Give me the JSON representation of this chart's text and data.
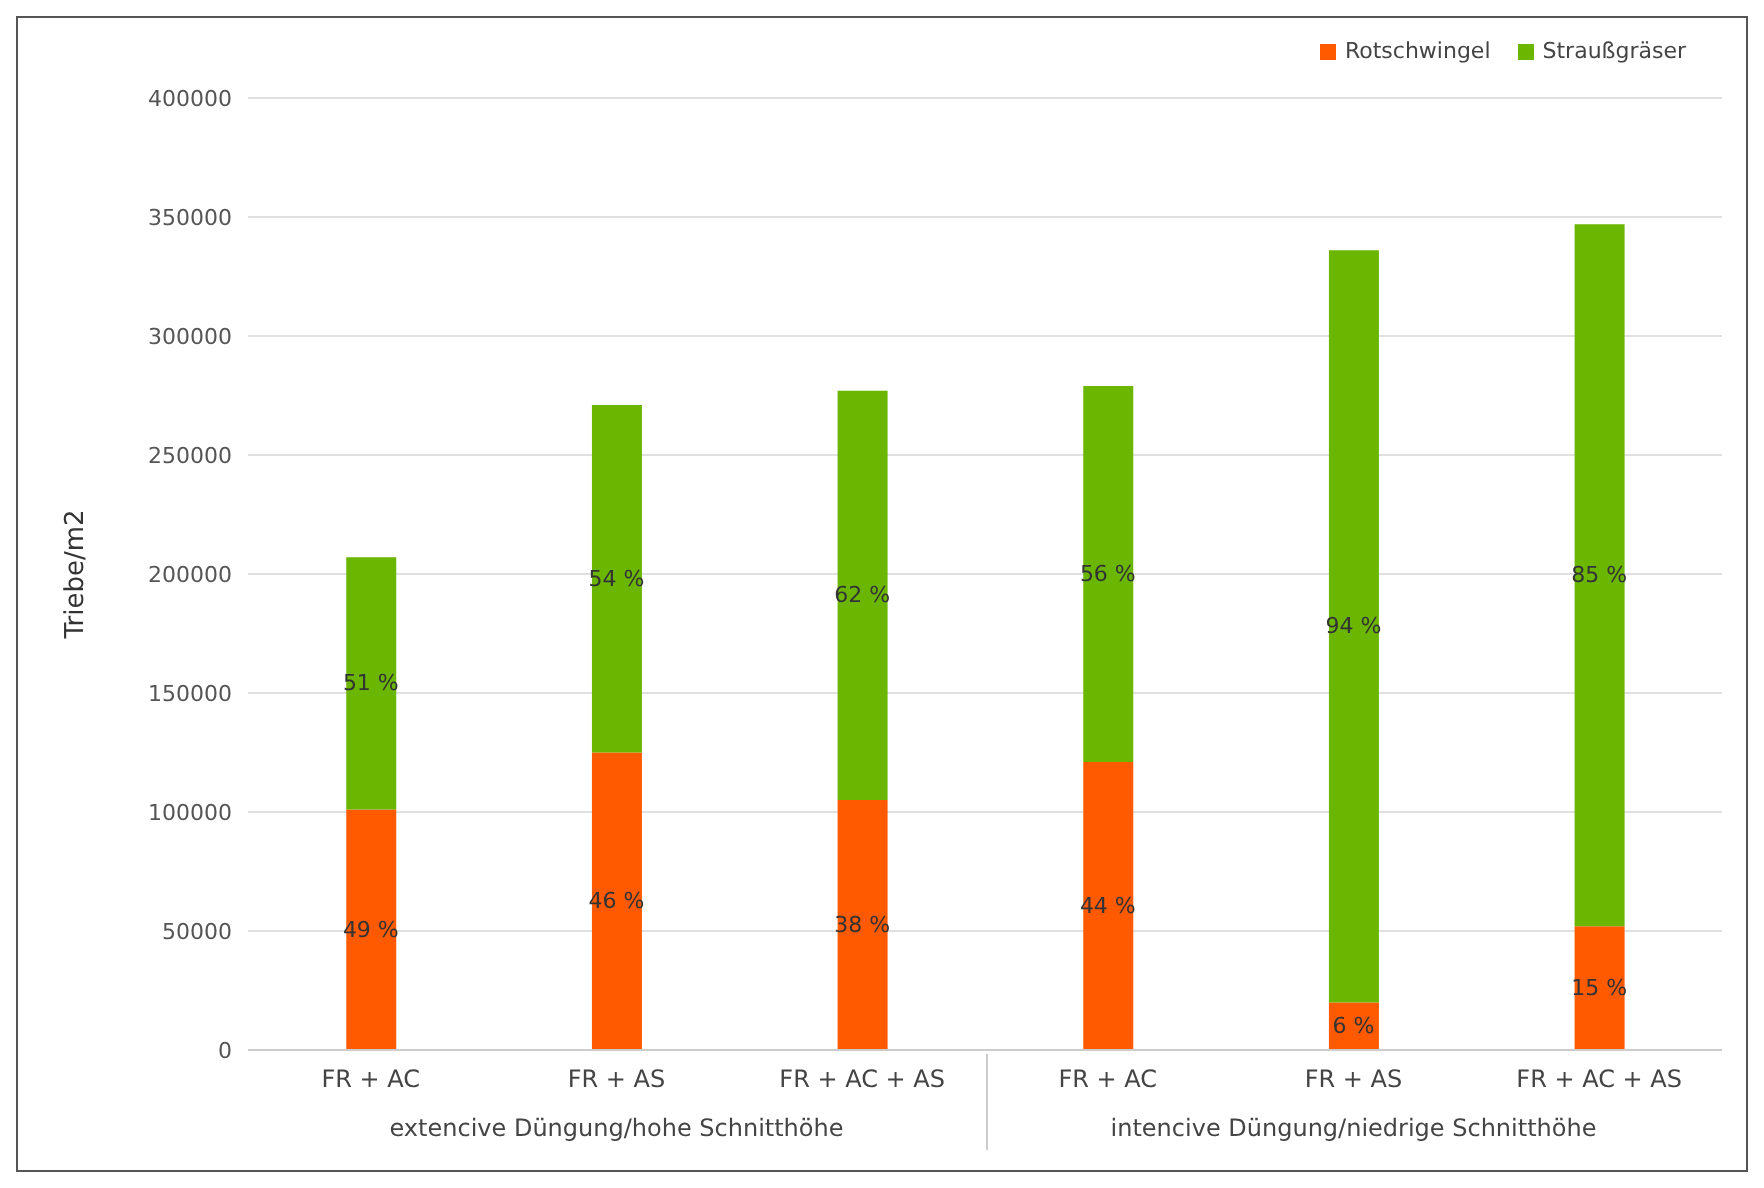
{
  "chart_data": {
    "type": "bar",
    "ylabel": "Triebe/m2",
    "categories": [
      "FR + AC",
      "FR + AS",
      "FR + AC + AS",
      "FR + AC",
      "FR + AS",
      "FR + AC + AS"
    ],
    "stacked": true,
    "series": [
      {
        "name": "Rotschwingel",
        "color": "#ff5a00",
        "values": [
          101000,
          125000,
          105000,
          121000,
          20000,
          52000
        ]
      },
      {
        "name": "Straußgräser",
        "color": "#6ab600",
        "values": [
          106000,
          146000,
          172000,
          158000,
          316000,
          295000
        ]
      }
    ],
    "ylim": [
      0,
      400000
    ],
    "yticks": [
      0,
      50000,
      100000,
      150000,
      200000,
      250000,
      300000,
      350000,
      400000
    ],
    "grid": "y",
    "legend": "top right",
    "annotations": [
      "extencive Düngung/hohe Schnitthöhe",
      "intencive Düngung/niedrige Schnitthöhe",
      "49 %",
      "51 %",
      "46 %",
      "54 %",
      "38 %",
      "62 %",
      "44 %",
      "56 %",
      "6 %",
      "94 %",
      "15 %",
      "85 %"
    ]
  }
}
